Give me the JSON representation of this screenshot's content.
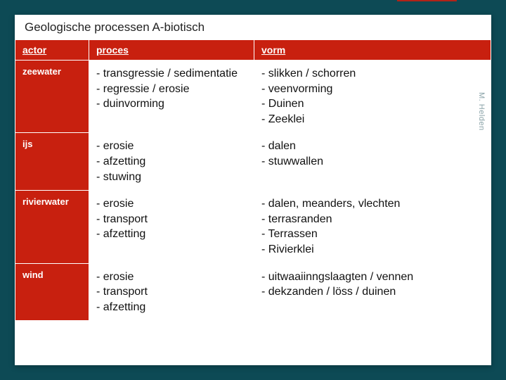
{
  "title": "Geologische processen A-biotisch",
  "watermark": "M. Helden",
  "accent_color": "#b02318",
  "header_bg": "#c8200f",
  "columns": [
    "actor",
    "proces",
    "vorm"
  ],
  "rows": [
    {
      "actor": "zeewater",
      "proces": "- transgressie / sedimentatie\n- regressie / erosie\n- duinvorming",
      "vorm": "- slikken / schorren\n- veenvorming\n- Duinen\n- Zeeklei"
    },
    {
      "actor": "ijs",
      "proces": "- erosie\n- afzetting\n- stuwing",
      "vorm": "- dalen\n- stuwwallen"
    },
    {
      "actor": "rivierwater",
      "proces": "- erosie\n- transport\n- afzetting",
      "vorm": "- dalen, meanders, vlechten\n- terrasranden\n- Terrassen\n- Rivierklei"
    },
    {
      "actor": "wind",
      "proces": "- erosie\n- transport\n- afzetting",
      "vorm": "- uitwaaiinngslaagten / vennen\n- dekzanden / löss / duinen"
    }
  ]
}
